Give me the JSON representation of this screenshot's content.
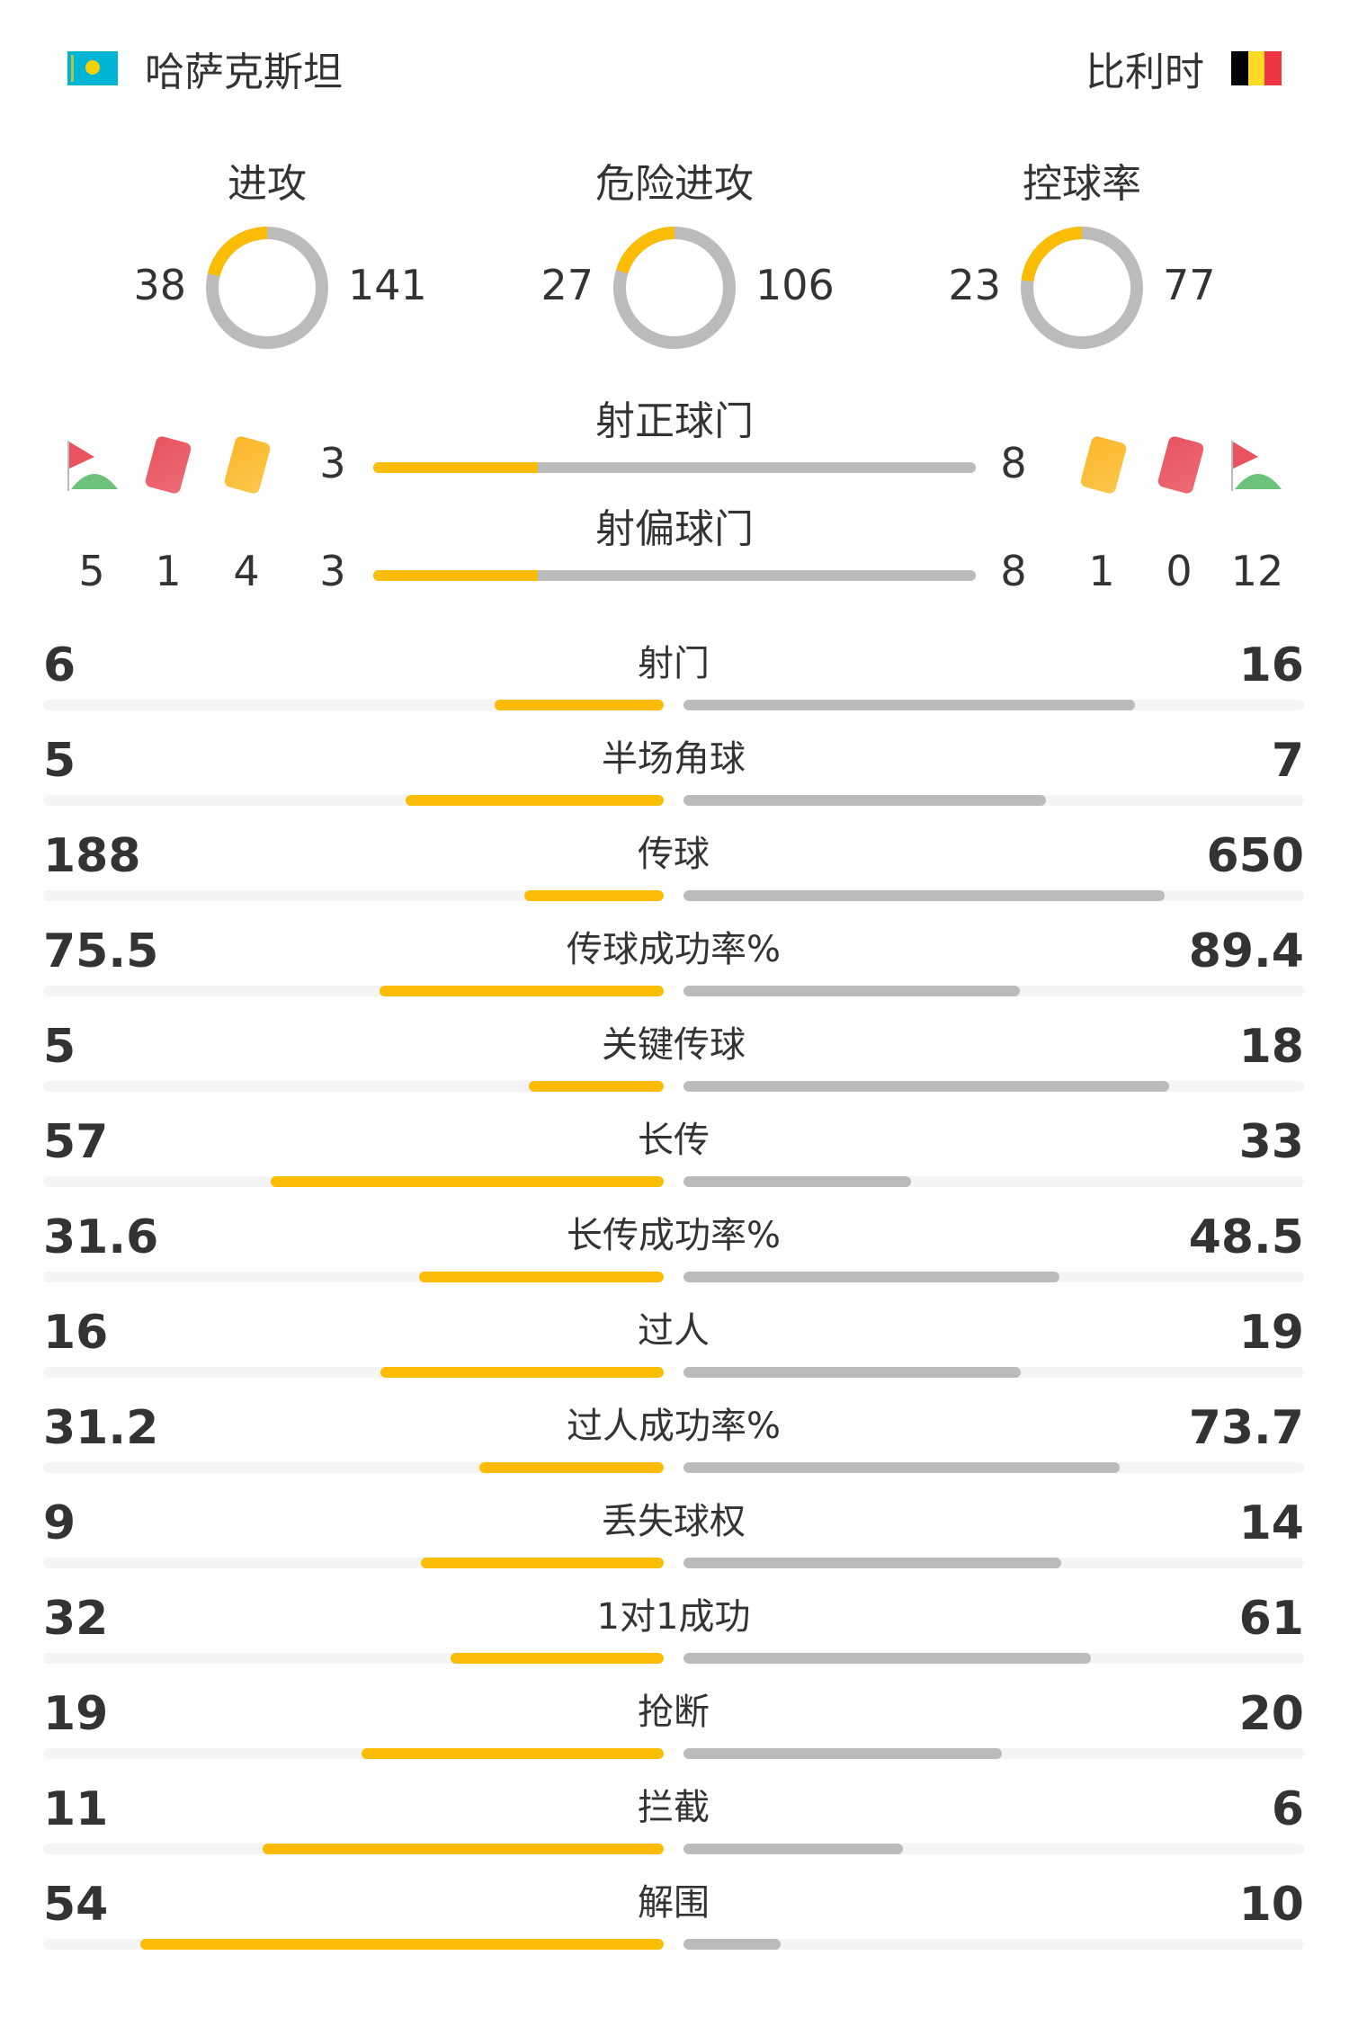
{
  "header": {
    "home_team": "哈萨克斯坦",
    "away_team": "比利时",
    "home_flag": "kazakhstan-flag",
    "away_flag": "belgium-flag"
  },
  "colors": {
    "home": "#fbbc05",
    "away": "#bbbbbb",
    "track": "#f4f4f4"
  },
  "donuts": [
    {
      "label": "进攻",
      "home": 38,
      "away": 141
    },
    {
      "label": "危险进攻",
      "home": 27,
      "away": 106
    },
    {
      "label": "控球率",
      "home": 23,
      "away": 77
    }
  ],
  "shots_on_target": {
    "label": "射正球门",
    "home": 3,
    "away": 8
  },
  "shots_off_target": {
    "label": "射偏球门",
    "home": 3,
    "away": 8
  },
  "icons": {
    "corner": "corner-flag-icon",
    "red": "red-card-icon",
    "yellow": "yellow-card-icon"
  },
  "home_counts": {
    "corners": 5,
    "red_cards": 1,
    "yellow_cards": 4
  },
  "away_counts": {
    "yellow_cards": 1,
    "red_cards": 0,
    "corners": 12
  },
  "stats": [
    {
      "label": "射门",
      "home": "6",
      "away": "16"
    },
    {
      "label": "半场角球",
      "home": "5",
      "away": "7"
    },
    {
      "label": "传球",
      "home": "188",
      "away": "650"
    },
    {
      "label": "传球成功率%",
      "home": "75.5",
      "away": "89.4"
    },
    {
      "label": "关键传球",
      "home": "5",
      "away": "18"
    },
    {
      "label": "长传",
      "home": "57",
      "away": "33"
    },
    {
      "label": "长传成功率%",
      "home": "31.6",
      "away": "48.5"
    },
    {
      "label": "过人",
      "home": "16",
      "away": "19"
    },
    {
      "label": "过人成功率%",
      "home": "31.2",
      "away": "73.7"
    },
    {
      "label": "丢失球权",
      "home": "9",
      "away": "14"
    },
    {
      "label": "1对1成功",
      "home": "32",
      "away": "61"
    },
    {
      "label": "抢断",
      "home": "19",
      "away": "20"
    },
    {
      "label": "拦截",
      "home": "11",
      "away": "6"
    },
    {
      "label": "解围",
      "home": "54",
      "away": "10"
    }
  ]
}
